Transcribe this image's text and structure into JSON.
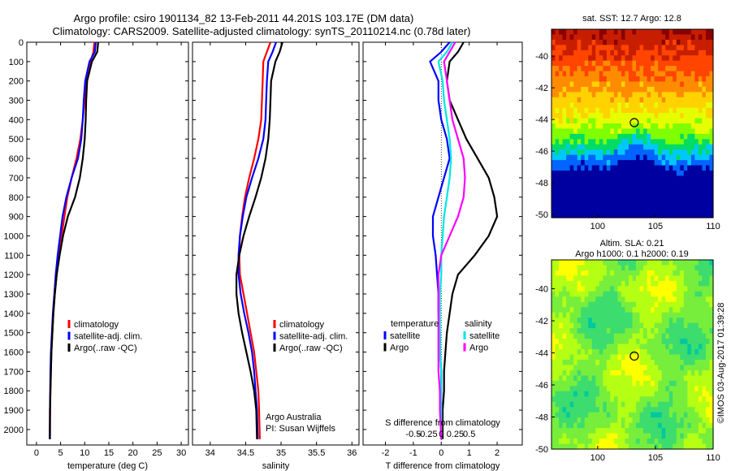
{
  "header": {
    "title_line1": "Argo profile: csiro 1901134_82 13-Feb-2011 44.201S 103.17E (DM data)",
    "title_line2": "Climatology: CARS2009. Satellite-adjusted climatology: synTS_20110214.nc (0.78d later)"
  },
  "footer": {
    "side_label": "©IMOS 03-Aug-2017 01:39:28"
  },
  "chart_data": [
    {
      "id": "temperature",
      "type": "line",
      "xlabel": "temperature (deg C)",
      "ylabel": "",
      "xlim": [
        -2,
        31.5
      ],
      "ylim": [
        2080,
        0
      ],
      "xticks": [
        0,
        5,
        10,
        15,
        20,
        25,
        30
      ],
      "xtick_labels": [
        "0",
        "5",
        "10",
        "15",
        "20",
        "25",
        "30"
      ],
      "yticks": [
        0,
        100,
        200,
        300,
        400,
        500,
        600,
        700,
        800,
        900,
        1000,
        1100,
        1200,
        1300,
        1400,
        1500,
        1600,
        1700,
        1800,
        1900,
        2000
      ],
      "ytick_labels": [
        "0",
        "100",
        "200",
        "300",
        "400",
        "500",
        "600",
        "700",
        "800",
        "900",
        "1000",
        "1100",
        "1200",
        "1300",
        "1400",
        "1500",
        "1600",
        "1700",
        "1800",
        "1900",
        "2000"
      ],
      "legend": [
        "climatology",
        "satellite-adj. clim.",
        "Argo(..raw -QC)"
      ],
      "legend_position": "lower-right",
      "series": [
        {
          "name": "climatology",
          "color": "#ff0000",
          "x": [
            12.0,
            11.8,
            11.2,
            10.3,
            10.0,
            9.6,
            9.1,
            8.3,
            7.3,
            6.4,
            5.8,
            5.2,
            4.6,
            4.2,
            3.8,
            3.5,
            3.3,
            3.1,
            3.0,
            2.9,
            2.85,
            2.8
          ],
          "y": [
            0,
            50,
            100,
            200,
            300,
            400,
            500,
            600,
            700,
            800,
            900,
            1000,
            1100,
            1200,
            1300,
            1400,
            1500,
            1600,
            1700,
            1800,
            1900,
            2050
          ]
        },
        {
          "name": "satellite-adj. clim.",
          "color": "#0000ff",
          "x": [
            12.3,
            12.1,
            11.0,
            10.1,
            9.8,
            9.6,
            9.3,
            8.6,
            7.3,
            6.2,
            5.4,
            4.9,
            4.4,
            4.0,
            3.7,
            3.4,
            3.2,
            3.0,
            2.9,
            2.85,
            2.8,
            2.8
          ],
          "y": [
            0,
            50,
            100,
            200,
            300,
            400,
            500,
            600,
            700,
            800,
            900,
            1000,
            1100,
            1200,
            1300,
            1400,
            1500,
            1600,
            1700,
            1800,
            1900,
            2050
          ]
        },
        {
          "name": "Argo(..raw -QC)",
          "color": "#000000",
          "x": [
            12.8,
            12.6,
            11.5,
            10.5,
            10.3,
            10.2,
            10.0,
            9.6,
            9.0,
            8.0,
            6.5,
            5.5,
            4.8,
            4.2,
            3.8,
            3.5,
            3.3,
            3.1,
            3.0,
            2.9,
            2.8,
            2.75
          ],
          "y": [
            0,
            50,
            100,
            200,
            300,
            400,
            500,
            600,
            700,
            800,
            900,
            1000,
            1100,
            1200,
            1300,
            1400,
            1500,
            1600,
            1700,
            1800,
            1900,
            2050
          ]
        }
      ]
    },
    {
      "id": "salinity",
      "type": "line",
      "xlabel": "salinity",
      "ylabel": "",
      "xlim": [
        33.75,
        36.1
      ],
      "ylim": [
        2080,
        0
      ],
      "xticks": [
        34,
        34.5,
        35,
        35.5,
        36
      ],
      "xtick_labels": [
        "34",
        "34.5",
        "35",
        "35.5",
        "36"
      ],
      "legend": [
        "climatology",
        "satellite-adj. clim.",
        "Argo(..raw -QC)"
      ],
      "legend_position": "lower-right",
      "annotations": [
        "Argo Australia",
        "PI: Susan Wijffels"
      ],
      "series": [
        {
          "name": "climatology",
          "color": "#ff0000",
          "x": [
            34.85,
            34.8,
            34.75,
            34.74,
            34.73,
            34.72,
            34.68,
            34.62,
            34.55,
            34.49,
            34.45,
            34.42,
            34.41,
            34.42,
            34.47,
            34.52,
            34.57,
            34.62,
            34.65,
            34.68,
            34.69,
            34.7
          ],
          "y": [
            0,
            50,
            100,
            200,
            300,
            400,
            500,
            600,
            700,
            800,
            900,
            1000,
            1100,
            1200,
            1300,
            1400,
            1500,
            1600,
            1700,
            1800,
            1900,
            2050
          ]
        },
        {
          "name": "satellite-adj. clim.",
          "color": "#0000ff",
          "x": [
            34.93,
            34.88,
            34.82,
            34.8,
            34.79,
            34.78,
            34.75,
            34.68,
            34.59,
            34.51,
            34.46,
            34.42,
            34.4,
            34.4,
            34.43,
            34.48,
            34.54,
            34.59,
            34.62,
            34.64,
            34.66,
            34.67
          ],
          "y": [
            0,
            50,
            100,
            200,
            300,
            400,
            500,
            600,
            700,
            800,
            900,
            1000,
            1100,
            1200,
            1300,
            1400,
            1500,
            1600,
            1700,
            1800,
            1900,
            2050
          ]
        },
        {
          "name": "Argo(..raw -QC)",
          "color": "#000000",
          "x": [
            35.02,
            34.98,
            34.92,
            34.86,
            34.85,
            34.84,
            34.82,
            34.78,
            34.72,
            34.64,
            34.55,
            34.47,
            34.41,
            34.37,
            34.37,
            34.4,
            34.45,
            34.51,
            34.57,
            34.62,
            34.65,
            34.66
          ],
          "y": [
            0,
            50,
            100,
            200,
            300,
            400,
            500,
            600,
            700,
            800,
            900,
            1000,
            1100,
            1200,
            1300,
            1400,
            1500,
            1600,
            1700,
            1800,
            1900,
            2050
          ]
        }
      ]
    },
    {
      "id": "differences",
      "type": "line",
      "xlabel": "T difference from climatology",
      "xlabel2": "S difference from climatology",
      "xlim": [
        -2.8,
        2.9
      ],
      "ylim": [
        2080,
        0
      ],
      "xticks": [
        -2,
        -1,
        0,
        1,
        2
      ],
      "xtick_labels": [
        "-2",
        "-1",
        "0",
        "1",
        "2"
      ],
      "xticks2_values": [
        -1.0,
        -0.5,
        0,
        0.5,
        1.0
      ],
      "xticks2_labels": [
        "-0.5",
        "-0.25",
        "0",
        "0.25",
        "0.5"
      ],
      "legend_groups": [
        {
          "title": "temperature",
          "items": [
            "satellite",
            "Argo"
          ]
        },
        {
          "title": "salinity",
          "items": [
            "satellite",
            "Argo"
          ]
        }
      ],
      "series": [
        {
          "name": "temperature satellite",
          "color": "#0000ff",
          "x": [
            0.3,
            0.0,
            -0.4,
            -0.1,
            -0.1,
            0.0,
            0.2,
            0.3,
            0.1,
            -0.1,
            -0.3,
            -0.3,
            -0.2,
            -0.15,
            -0.1,
            -0.1,
            -0.05,
            -0.05,
            0.0,
            0.0,
            0.0,
            0.0
          ],
          "y": [
            0,
            50,
            100,
            200,
            300,
            400,
            500,
            600,
            700,
            800,
            900,
            1000,
            1100,
            1200,
            1300,
            1400,
            1500,
            1600,
            1700,
            1800,
            1900,
            2050
          ]
        },
        {
          "name": "temperature Argo",
          "color": "#000000",
          "x": [
            0.8,
            0.6,
            0.3,
            0.2,
            0.3,
            0.6,
            0.9,
            1.3,
            1.7,
            1.9,
            2.0,
            1.7,
            1.2,
            0.6,
            0.4,
            0.3,
            0.2,
            0.15,
            0.1,
            0.1,
            0.05,
            0.05
          ],
          "y": [
            0,
            50,
            100,
            200,
            300,
            400,
            500,
            600,
            700,
            800,
            900,
            1000,
            1100,
            1200,
            1300,
            1400,
            1500,
            1600,
            1700,
            1800,
            1900,
            2050
          ]
        },
        {
          "name": "salinity satellite",
          "color": "#00e5e5",
          "x": [
            0.4,
            0.2,
            -0.1,
            0.05,
            0.1,
            0.2,
            0.3,
            0.35,
            0.3,
            0.2,
            0.1,
            0.05,
            0.0,
            0.0,
            -0.05,
            -0.05,
            -0.05,
            -0.05,
            0.0,
            0.0,
            0.0,
            0.0
          ],
          "y": [
            0,
            50,
            100,
            200,
            300,
            400,
            500,
            600,
            700,
            800,
            900,
            1000,
            1100,
            1200,
            1300,
            1400,
            1500,
            1600,
            1700,
            1800,
            1900,
            2050
          ]
        },
        {
          "name": "salinity Argo",
          "color": "#ff00ff",
          "x": [
            0.5,
            0.3,
            0.1,
            0.2,
            0.3,
            0.4,
            0.6,
            0.8,
            0.85,
            0.8,
            0.6,
            0.3,
            0.0,
            -0.1,
            -0.1,
            -0.1,
            -0.1,
            -0.1,
            -0.1,
            -0.05,
            -0.05,
            0.0
          ],
          "y": [
            0,
            50,
            100,
            200,
            300,
            400,
            500,
            600,
            700,
            800,
            900,
            1000,
            1100,
            1200,
            1300,
            1400,
            1500,
            1600,
            1700,
            1800,
            1900,
            2050
          ]
        }
      ]
    },
    {
      "id": "sst_map",
      "type": "heatmap",
      "title": "sat. SST: 12.7 Argo: 12.8",
      "xlim": [
        96,
        110
      ],
      "ylim": [
        -50.2,
        -38.3
      ],
      "xticks": [
        100,
        105,
        110
      ],
      "xtick_labels": [
        "100",
        "105",
        "110"
      ],
      "yticks": [
        -40,
        -42,
        -44,
        -46,
        -48,
        -50
      ],
      "ytick_labels": [
        "-40",
        "-42",
        "-44",
        "-46",
        "-48",
        "-50"
      ],
      "marker": {
        "lon": 103.17,
        "lat": -44.2
      },
      "colors": [
        "#8b0000",
        "#c81e00",
        "#ff4500",
        "#ff8c00",
        "#ffd200",
        "#e6ff00",
        "#7fff00",
        "#00dc64",
        "#00c8ff",
        "#0064ff",
        "#0000a0"
      ],
      "colorbar": false
    },
    {
      "id": "sla_map",
      "type": "heatmap",
      "title": "Altim. SLA: 0.21",
      "title2": "Argo h1000: 0.1 h2000: 0.19",
      "xlim": [
        96,
        110
      ],
      "ylim": [
        -50.0,
        -38.2
      ],
      "xticks": [
        100,
        105,
        110
      ],
      "xtick_labels": [
        "100",
        "105",
        "110"
      ],
      "yticks": [
        -40,
        -42,
        -44,
        -46,
        -48,
        -50
      ],
      "ytick_labels": [
        "-40",
        "-42",
        "-44",
        "-46",
        "-48",
        "-50"
      ],
      "marker": {
        "lon": 103.17,
        "lat": -44.2
      },
      "colors": [
        "#00c8a0",
        "#3cdc6e",
        "#78ee3c",
        "#b4ff14",
        "#ffff00",
        "#ffc800"
      ],
      "colorbar": false
    }
  ]
}
